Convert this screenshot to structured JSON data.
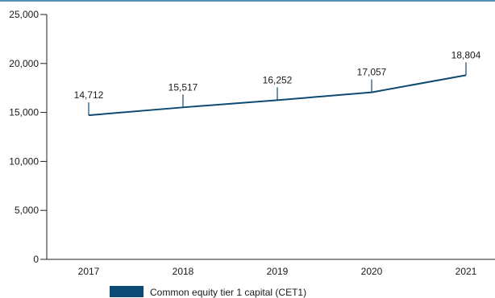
{
  "chart_data": {
    "type": "line",
    "title": "",
    "xlabel": "",
    "ylabel": "",
    "categories": [
      "2017",
      "2018",
      "2019",
      "2020",
      "2021"
    ],
    "series": [
      {
        "name": "Common equity tier 1 capital (CET1)",
        "values": [
          14712,
          15517,
          16252,
          17057,
          18804
        ],
        "labels": [
          "14,712",
          "15,517",
          "16,252",
          "17,057",
          "18,804"
        ]
      }
    ],
    "ylim": [
      0,
      25000
    ],
    "yticks": [
      0,
      5000,
      10000,
      15000,
      20000,
      25000
    ],
    "ytick_labels": [
      "0",
      "5,000",
      "10,000",
      "15,000",
      "20,000",
      "25,000"
    ],
    "grid": false,
    "legend_position": "bottom-left"
  },
  "colors": {
    "series": "#0d4a73",
    "top_rule": "#1f6da0",
    "axis": "#222222"
  }
}
